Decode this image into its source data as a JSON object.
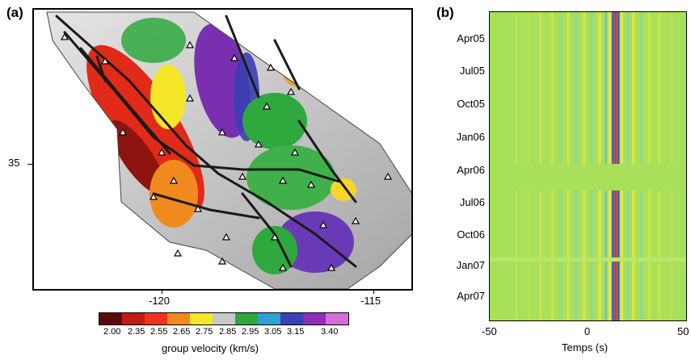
{
  "panel_a": {
    "label": "(a)",
    "lon_ticks": [
      "-120",
      "-115"
    ],
    "lat_ticks": [
      "35"
    ],
    "colorbar": {
      "ticks": [
        "2.00",
        "2.35",
        "2.55",
        "2.65",
        "2.75",
        "2.85",
        "2.95",
        "3.05",
        "3.15",
        "3.40"
      ],
      "colors": [
        "#5a0a0a",
        "#c21a14",
        "#f2331c",
        "#f08a1e",
        "#f6e62a",
        "#c8c8c8",
        "#2fa83e",
        "#2f9fd6",
        "#3a3fb3",
        "#8a2fb6",
        "#d66cd8"
      ],
      "label": "group velocity (km/s)"
    }
  },
  "panel_b": {
    "label": "(b)",
    "y_ticks": [
      "Apr05",
      "Jul05",
      "Oct05",
      "Jan06",
      "Apr06",
      "Jul06",
      "Oct06",
      "Jan07",
      "Apr07"
    ],
    "x_ticks": [
      "-50",
      "0",
      "50"
    ],
    "xlabel": "Temps (s)"
  },
  "chart_data": {
    "type": "heatmap",
    "title": "",
    "xlabel": "Temps (s)",
    "ylabel": "",
    "xlim": [
      -50,
      50
    ],
    "x_ticks": [
      -50,
      0,
      50
    ],
    "y_categories": [
      "Apr05",
      "Jul05",
      "Oct05",
      "Jan06",
      "Apr06",
      "Jul06",
      "Oct06",
      "Jan07",
      "Apr07"
    ],
    "gap_rows": [
      "Apr06"
    ],
    "strongest_arrival_s": 14,
    "colors": {
      "background": "#a8e05a",
      "peak": "#d03a2a",
      "trough": "#2a6ad0",
      "mid": "#f0e640"
    }
  }
}
